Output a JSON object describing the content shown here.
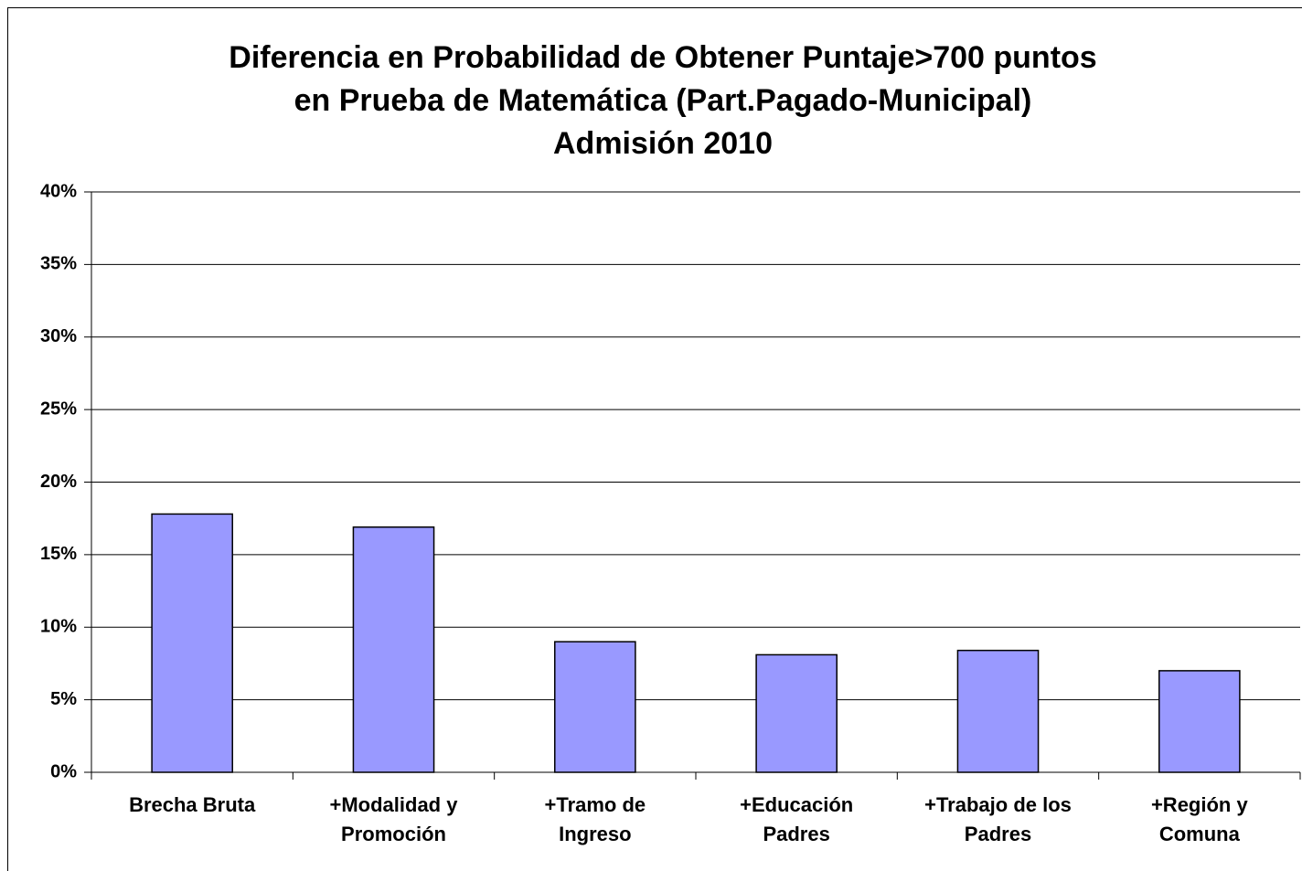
{
  "chart_data": {
    "type": "bar",
    "title": [
      "Diferencia en Probabilidad de Obtener Puntaje>700 puntos",
      "en Prueba de Matemática  (Part.Pagado-Municipal)",
      "Admisión 2010"
    ],
    "categories": [
      "Brecha Bruta",
      "+Modalidad y Promoción",
      "+Tramo de Ingreso",
      "+Educación Padres",
      "+Trabajo de los Padres",
      "+Región y Comuna"
    ],
    "values": [
      17.8,
      16.9,
      9.0,
      8.1,
      8.4,
      7.0
    ],
    "color": "#9999ff",
    "ylim": [
      0,
      40
    ],
    "yticks": [
      {
        "value": 0,
        "label": "0%"
      },
      {
        "value": 5,
        "label": "5%"
      },
      {
        "value": 10,
        "label": "10%"
      },
      {
        "value": 15,
        "label": "15%"
      },
      {
        "value": 20,
        "label": "20%"
      },
      {
        "value": 25,
        "label": "25%"
      },
      {
        "value": 30,
        "label": "30%"
      },
      {
        "value": 35,
        "label": "35%"
      },
      {
        "value": 40,
        "label": "40%"
      }
    ],
    "grid": true
  }
}
